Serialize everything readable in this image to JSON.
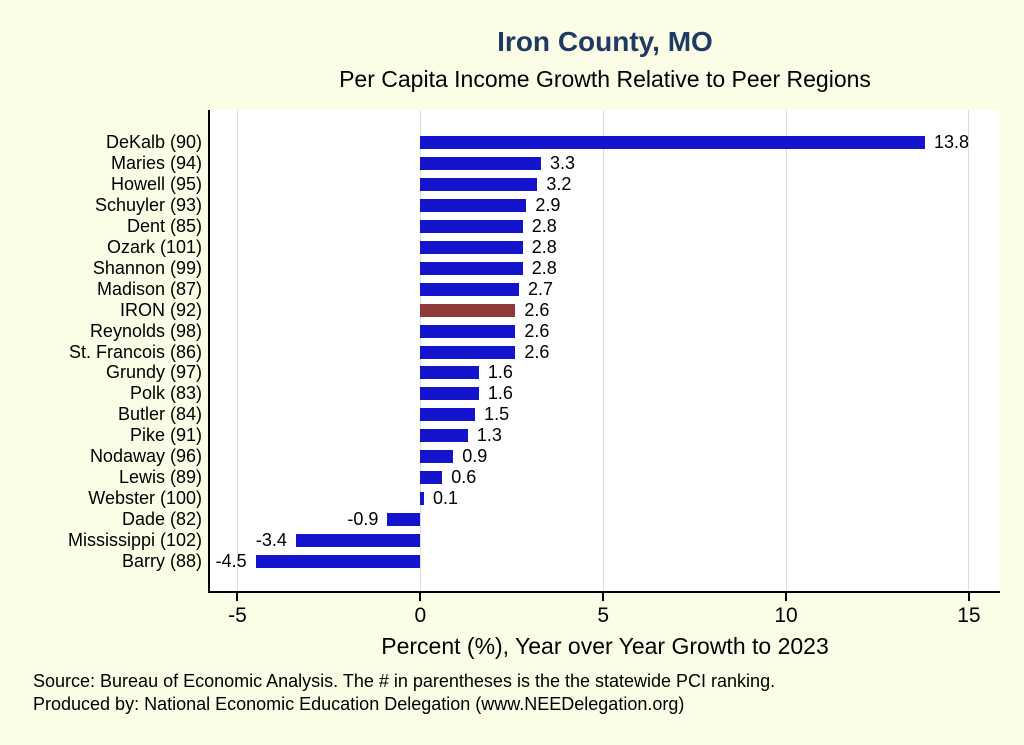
{
  "title": "Iron County, MO",
  "subtitle": "Per Capita Income Growth Relative to Peer Regions",
  "xlabel": "Percent (%), Year over Year Growth to 2023",
  "source_line1": "Source: Bureau of Economic Analysis. The # in parentheses is the the statewide PCI ranking.",
  "source_line2": "Produced by: National Economic Education Delegation (www.NEEDelegation.org)",
  "colors": {
    "background": "#FCFDE7",
    "plot_background": "#FFFFFF",
    "bar": "#1414CC",
    "highlight_bar": "#903A3A",
    "title": "#1F3A63",
    "grid": "#DCDCDC",
    "axis": "#000000"
  },
  "chart_data": {
    "type": "bar",
    "orientation": "horizontal",
    "title": "Iron County, MO",
    "subtitle": "Per Capita Income Growth Relative to Peer Regions",
    "xlabel": "Percent (%), Year over Year Growth to 2023",
    "categories": [
      "DeKalb (90)",
      "Maries (94)",
      "Howell (95)",
      "Schuyler (93)",
      "Dent (85)",
      "Ozark (101)",
      "Shannon (99)",
      "Madison (87)",
      "IRON (92)",
      "Reynolds (98)",
      "St. Francois (86)",
      "Grundy (97)",
      "Polk (83)",
      "Butler (84)",
      "Pike (91)",
      "Nodaway (96)",
      "Lewis (89)",
      "Webster (100)",
      "Dade (82)",
      "Mississippi (102)",
      "Barry (88)"
    ],
    "values": [
      13.8,
      3.3,
      3.2,
      2.9,
      2.8,
      2.8,
      2.8,
      2.7,
      2.6,
      2.6,
      2.6,
      1.6,
      1.6,
      1.5,
      1.3,
      0.9,
      0.6,
      0.1,
      -0.9,
      -3.4,
      -4.5
    ],
    "highlight_category": "IRON (92)",
    "xticks": [
      -5,
      0,
      5,
      10,
      15
    ],
    "xlim": [
      -5.75,
      15.85
    ],
    "grid": true,
    "value_labels": true,
    "legend": "none"
  }
}
